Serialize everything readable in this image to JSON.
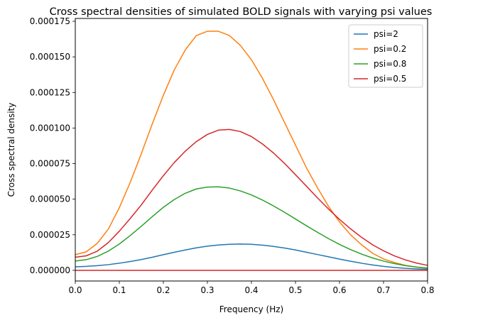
{
  "chart_data": {
    "type": "line",
    "title": "Cross spectral densities of simulated BOLD signals with varying psi values",
    "xlabel": "Frequency (Hz)",
    "ylabel": "Cross spectral density",
    "xlim": [
      0,
      0.8
    ],
    "ylim": [
      -7.5e-06,
      0.000177
    ],
    "xticks": [
      0.0,
      0.1,
      0.2,
      0.3,
      0.4,
      0.5,
      0.6,
      0.7,
      0.8
    ],
    "xtick_labels": [
      "0.0",
      "0.1",
      "0.2",
      "0.3",
      "0.4",
      "0.5",
      "0.6",
      "0.7",
      "0.8"
    ],
    "yticks": [
      0,
      2.5e-05,
      5e-05,
      7.5e-05,
      0.0001,
      0.000125,
      0.00015,
      0.000175
    ],
    "ytick_labels": [
      "0.000000",
      "0.000025",
      "0.000050",
      "0.000075",
      "0.000100",
      "0.000125",
      "0.000150",
      "0.000175"
    ],
    "grid": false,
    "legend_position": "top-right",
    "x": [
      0.0,
      0.025,
      0.05,
      0.075,
      0.1,
      0.125,
      0.15,
      0.175,
      0.2,
      0.225,
      0.25,
      0.275,
      0.3,
      0.325,
      0.35,
      0.375,
      0.4,
      0.425,
      0.45,
      0.475,
      0.5,
      0.525,
      0.55,
      0.575,
      0.6,
      0.625,
      0.65,
      0.675,
      0.7,
      0.725,
      0.75,
      0.775,
      0.8
    ],
    "series": [
      {
        "name": "psi=2",
        "color": "#1f77b4",
        "values": [
          2.5e-06,
          2.8e-06,
          3.3e-06,
          4e-06,
          5e-06,
          6.2e-06,
          7.6e-06,
          9.2e-06,
          1.1e-05,
          1.27e-05,
          1.43e-05,
          1.58e-05,
          1.7e-05,
          1.78e-05,
          1.83e-05,
          1.85e-05,
          1.83e-05,
          1.77e-05,
          1.68e-05,
          1.57e-05,
          1.43e-05,
          1.27e-05,
          1.11e-05,
          9.5e-06,
          7.9e-06,
          6.4e-06,
          5e-06,
          3.8e-06,
          2.8e-06,
          2e-06,
          1.4e-06,
          1e-06,
          7e-07
        ]
      },
      {
        "name": "psi=0.2",
        "color": "#ff7f0e",
        "values": [
          1.1e-05,
          1.3e-05,
          1.9e-05,
          2.9e-05,
          4.4e-05,
          6.2e-05,
          8.2e-05,
          0.000103,
          0.000123,
          0.000141,
          0.000155,
          0.000165,
          0.000168,
          0.000168,
          0.000165,
          0.000158,
          0.000148,
          0.000135,
          0.00012,
          0.000104,
          8.8e-05,
          7.2e-05,
          5.8e-05,
          4.5e-05,
          3.4e-05,
          2.5e-05,
          1.8e-05,
          1.2e-05,
          8e-06,
          5.5e-06,
          3.5e-06,
          2.2e-06,
          1.4e-06
        ]
      },
      {
        "name": "psi=0.8",
        "color": "#2ca02c",
        "values": [
          6.5e-06,
          7.5e-06,
          9.8e-06,
          1.35e-05,
          1.85e-05,
          2.45e-05,
          3.1e-05,
          3.78e-05,
          4.43e-05,
          4.98e-05,
          5.42e-05,
          5.72e-05,
          5.85e-05,
          5.87e-05,
          5.78e-05,
          5.58e-05,
          5.3e-05,
          4.94e-05,
          4.53e-05,
          4.08e-05,
          3.61e-05,
          3.13e-05,
          2.67e-05,
          2.23e-05,
          1.82e-05,
          1.46e-05,
          1.14e-05,
          8.7e-06,
          6.5e-06,
          4.7e-06,
          3.3e-06,
          2.3e-06,
          1.6e-06
        ]
      },
      {
        "name": "psi=0.5",
        "color": "#d62728",
        "values": [
          9.2e-06,
          1.02e-05,
          1.35e-05,
          1.95e-05,
          2.75e-05,
          3.65e-05,
          4.6e-05,
          5.65e-05,
          6.65e-05,
          7.58e-05,
          8.38e-05,
          9.05e-05,
          9.55e-05,
          9.85e-05,
          9.9e-05,
          9.75e-05,
          9.4e-05,
          8.88e-05,
          8.25e-05,
          7.52e-05,
          6.72e-05,
          5.91e-05,
          5.09e-05,
          4.31e-05,
          3.58e-05,
          2.92e-05,
          2.32e-05,
          1.8e-05,
          1.37e-05,
          1.01e-05,
          7.3e-06,
          5.1e-06,
          3.5e-06
        ]
      }
    ]
  }
}
